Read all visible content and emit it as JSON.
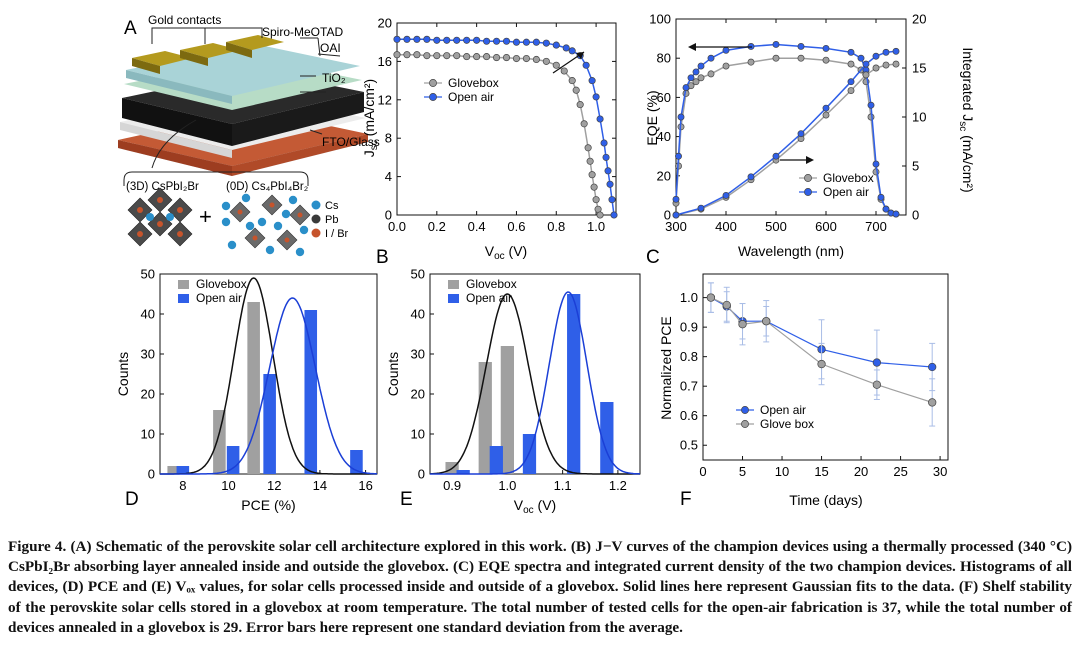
{
  "panelA": {
    "letter": "A",
    "layers": {
      "gold": "Gold contacts",
      "spiro": "Spiro-MeOTAD",
      "oai": "OAI",
      "tio2": "TiO₂",
      "fto": "FTO/Glass"
    },
    "crystal_3d_label": "(3D) CsPbI₂Br",
    "crystal_0d_label": "(0D) Cs₄PbI₄Br₂",
    "plus": "+",
    "legend": [
      {
        "label": "Cs",
        "color": "#2a8fc9"
      },
      {
        "label": "Pb",
        "color": "#3a3a3a"
      },
      {
        "label": "I / Br",
        "color": "#c6542c"
      }
    ]
  },
  "colors": {
    "glovebox": "#a0a0a0",
    "openair": "#2f5fe8",
    "gauss_black": "#111111",
    "gauss_blue": "#1b3fd6"
  },
  "chart_data": [
    {
      "panel": "B",
      "type": "line",
      "letter": "B",
      "xlabel": "V",
      "xlabel_sub": "oc",
      "xlabel_unit": " (V)",
      "ylabel": "J",
      "ylabel_sub": "sc",
      "ylabel_unit": " (mA/cm²)",
      "xlim": [
        0,
        1.1
      ],
      "ylim": [
        0,
        20
      ],
      "xticks": [
        "0.0",
        "0.2",
        "0.4",
        "0.6",
        "0.8",
        "1.0"
      ],
      "xtick_values": [
        0,
        0.2,
        0.4,
        0.6,
        0.8,
        1.0
      ],
      "yticks": [
        "0",
        "4",
        "8",
        "12",
        "16",
        "20"
      ],
      "ytick_values": [
        0,
        4,
        8,
        12,
        16,
        20
      ],
      "series": [
        {
          "name": "Glovebox",
          "x": [
            0,
            0.05,
            0.1,
            0.15,
            0.2,
            0.25,
            0.3,
            0.35,
            0.4,
            0.45,
            0.5,
            0.55,
            0.6,
            0.65,
            0.7,
            0.75,
            0.8,
            0.84,
            0.88,
            0.9,
            0.92,
            0.94,
            0.96,
            0.97,
            0.98,
            0.99,
            1.0,
            1.01,
            1.02
          ],
          "y": [
            16.7,
            16.7,
            16.7,
            16.6,
            16.6,
            16.6,
            16.6,
            16.5,
            16.5,
            16.5,
            16.4,
            16.4,
            16.3,
            16.3,
            16.2,
            16.0,
            15.6,
            15.0,
            14.0,
            13.0,
            11.5,
            9.5,
            7.0,
            5.6,
            4.2,
            2.9,
            1.6,
            0.6,
            0.0
          ]
        },
        {
          "name": "Open air",
          "x": [
            0,
            0.05,
            0.1,
            0.15,
            0.2,
            0.25,
            0.3,
            0.35,
            0.4,
            0.45,
            0.5,
            0.55,
            0.6,
            0.65,
            0.7,
            0.75,
            0.8,
            0.85,
            0.88,
            0.92,
            0.95,
            0.98,
            1.0,
            1.02,
            1.04,
            1.05,
            1.06,
            1.07,
            1.08,
            1.09
          ],
          "y": [
            18.3,
            18.3,
            18.3,
            18.3,
            18.2,
            18.2,
            18.2,
            18.2,
            18.2,
            18.1,
            18.1,
            18.1,
            18.0,
            18.0,
            18.0,
            17.9,
            17.7,
            17.4,
            17.1,
            16.6,
            15.6,
            14.0,
            12.3,
            10.0,
            7.5,
            6.0,
            4.6,
            3.2,
            1.6,
            0.0
          ]
        }
      ],
      "legend": [
        {
          "label": "Glovebox"
        },
        {
          "label": "Open air"
        }
      ],
      "legend_position": "center-right"
    },
    {
      "panel": "C",
      "type": "line",
      "letter": "C",
      "xlabel": "Wavelength (nm)",
      "ylabel": "EQE (%)",
      "ylabel_right": "Integrated J",
      "ylabel_right_sub": "sc",
      "ylabel_right_unit": " (mA/cm²)",
      "xlim": [
        300,
        760
      ],
      "ylim": [
        0,
        100
      ],
      "ylim_right": [
        0,
        20
      ],
      "xticks": [
        "300",
        "400",
        "500",
        "600",
        "700"
      ],
      "xtick_values": [
        300,
        400,
        500,
        600,
        700
      ],
      "yticks": [
        "0",
        "20",
        "40",
        "60",
        "80",
        "100"
      ],
      "ytick_values": [
        0,
        20,
        40,
        60,
        80,
        100
      ],
      "yticks_right": [
        "0",
        "5",
        "10",
        "15",
        "20"
      ],
      "ytick_right_values": [
        0,
        5,
        10,
        15,
        20
      ],
      "series": [
        {
          "name": "Glovebox",
          "axis": "left",
          "x": [
            300,
            305,
            310,
            320,
            330,
            340,
            350,
            370,
            400,
            450,
            500,
            550,
            600,
            650,
            670,
            680,
            690,
            700,
            710,
            720,
            730,
            740
          ],
          "y": [
            6,
            25,
            45,
            62,
            66,
            68,
            70,
            72,
            76,
            78,
            80,
            80,
            79,
            77,
            74,
            68,
            50,
            22,
            8,
            3,
            1,
            0.5
          ]
        },
        {
          "name": "Open air",
          "axis": "left",
          "x": [
            300,
            305,
            310,
            320,
            330,
            340,
            350,
            370,
            400,
            450,
            500,
            550,
            600,
            650,
            670,
            680,
            690,
            700,
            710,
            720,
            730,
            740
          ],
          "y": [
            8,
            30,
            50,
            65,
            70,
            73,
            76,
            80,
            84,
            86,
            87,
            86,
            85,
            83,
            80,
            74,
            56,
            26,
            9,
            3,
            1,
            0.5
          ]
        },
        {
          "name": "Glovebox",
          "axis": "right",
          "x": [
            300,
            350,
            400,
            450,
            500,
            550,
            600,
            650,
            680,
            700,
            720,
            740
          ],
          "y": [
            0,
            0.6,
            1.8,
            3.6,
            5.6,
            7.8,
            10.2,
            12.7,
            14.3,
            15.0,
            15.3,
            15.4
          ]
        },
        {
          "name": "Open air",
          "axis": "right",
          "x": [
            300,
            350,
            400,
            450,
            500,
            550,
            600,
            650,
            680,
            700,
            720,
            740
          ],
          "y": [
            0,
            0.7,
            2.0,
            3.9,
            6.0,
            8.3,
            10.9,
            13.6,
            15.4,
            16.2,
            16.6,
            16.7
          ]
        }
      ],
      "legend": [
        {
          "label": "Glovebox"
        },
        {
          "label": "Open air"
        }
      ],
      "legend_position": "center-right"
    },
    {
      "panel": "D",
      "type": "bar",
      "letter": "D",
      "xlabel": "PCE (%)",
      "ylabel": "Counts",
      "xlim": [
        7,
        16.5
      ],
      "ylim": [
        0,
        50
      ],
      "xticks": [
        "8",
        "10",
        "12",
        "14",
        "16"
      ],
      "xtick_values": [
        8,
        10,
        12,
        14,
        16
      ],
      "yticks": [
        "0",
        "10",
        "20",
        "30",
        "40",
        "50"
      ],
      "ytick_values": [
        0,
        10,
        20,
        30,
        40,
        50
      ],
      "categories": [
        "7.6",
        "9.6",
        "11.1",
        "13.6"
      ],
      "series": [
        {
          "name": "Glovebox",
          "x": [
            7.6,
            9.6,
            11.1,
            13.6
          ],
          "values": [
            2,
            16,
            43,
            2
          ]
        },
        {
          "name": "Open air",
          "x": [
            8.0,
            10.2,
            11.8,
            13.6,
            15.6
          ],
          "values": [
            2,
            7,
            25,
            41,
            6
          ]
        }
      ],
      "gaussians": [
        {
          "series": "Glovebox",
          "mu": 11.1,
          "sigma": 0.85,
          "amp": 49
        },
        {
          "series": "Open air",
          "mu": 12.8,
          "sigma": 1.0,
          "amp": 44
        }
      ],
      "legend": [
        {
          "label": "Glovebox"
        },
        {
          "label": "Open air"
        }
      ],
      "legend_position": "top-left"
    },
    {
      "panel": "E",
      "type": "bar",
      "letter": "E",
      "xlabel": "V",
      "xlabel_sub": "oc",
      "xlabel_unit": " (V)",
      "ylabel": "Counts",
      "xlim": [
        0.86,
        1.24
      ],
      "ylim": [
        0,
        50
      ],
      "xticks": [
        "0.9",
        "1.0",
        "1.1",
        "1.2"
      ],
      "xtick_values": [
        0.9,
        1.0,
        1.1,
        1.2
      ],
      "yticks": [
        "0",
        "10",
        "20",
        "30",
        "40",
        "50"
      ],
      "ytick_values": [
        0,
        10,
        20,
        30,
        40,
        50
      ],
      "series": [
        {
          "name": "Glovebox",
          "x": [
            0.9,
            0.96,
            1.0
          ],
          "values": [
            3,
            28,
            32
          ]
        },
        {
          "name": "Open air",
          "x": [
            0.92,
            0.98,
            1.04,
            1.12,
            1.18
          ],
          "values": [
            1,
            7,
            10,
            45,
            18
          ]
        }
      ],
      "gaussians": [
        {
          "series": "Glovebox",
          "mu": 1.0,
          "sigma": 0.038,
          "amp": 45
        },
        {
          "series": "Open air",
          "mu": 1.11,
          "sigma": 0.034,
          "amp": 45.5
        }
      ],
      "legend": [
        {
          "label": "Glovebox"
        },
        {
          "label": "Open air"
        }
      ],
      "legend_position": "top-left"
    },
    {
      "panel": "F",
      "type": "scatter",
      "letter": "F",
      "xlabel": "Time (days)",
      "ylabel": "Normalized PCE",
      "xlim": [
        0,
        31
      ],
      "ylim": [
        0.45,
        1.08
      ],
      "xticks": [
        "0",
        "5",
        "10",
        "15",
        "20",
        "25",
        "30"
      ],
      "xtick_values": [
        0,
        5,
        10,
        15,
        20,
        25,
        30
      ],
      "yticks": [
        "0.5",
        "0.6",
        "0.7",
        "0.8",
        "0.9",
        "1.0"
      ],
      "ytick_values": [
        0.5,
        0.6,
        0.7,
        0.8,
        0.9,
        1.0
      ],
      "series": [
        {
          "name": "Open air",
          "x": [
            1,
            3,
            5,
            8,
            15,
            22,
            29
          ],
          "y": [
            1.0,
            0.97,
            0.92,
            0.92,
            0.825,
            0.78,
            0.765
          ],
          "err": [
            0.05,
            0.05,
            0.06,
            0.05,
            0.1,
            0.11,
            0.08
          ]
        },
        {
          "name": "Glove box",
          "x": [
            1,
            3,
            5,
            8,
            15,
            22,
            29
          ],
          "y": [
            1.0,
            0.975,
            0.91,
            0.92,
            0.775,
            0.705,
            0.645
          ],
          "err": [
            0.05,
            0.06,
            0.07,
            0.07,
            0.07,
            0.05,
            0.08
          ]
        }
      ],
      "legend": [
        {
          "label": "Open air"
        },
        {
          "label": "Glove box"
        }
      ],
      "legend_position": "bottom-left"
    }
  ],
  "caption": {
    "label": "Figure 4.",
    "text": "(A) Schematic of the perovskite solar cell architecture explored in this work. (B) J−V curves of the champion devices using a thermally processed (340 °C) CsPbI₂Br absorbing layer annealed inside and outside the glovebox. (C) EQE spectra and integrated current density of the two champion devices. Histograms of all devices, (D) PCE and (E) Vₒₓ values, for solar cells processed inside and outside of a glovebox. Solid lines here represent Gaussian fits to the data. (F) Shelf stability of the perovskite solar cells stored in a glovebox at room temperature. The total number of tested cells for the open-air fabrication is 37, while the total number of devices annealed in a glovebox is 29. Error bars here represent one standard deviation from the average."
  }
}
